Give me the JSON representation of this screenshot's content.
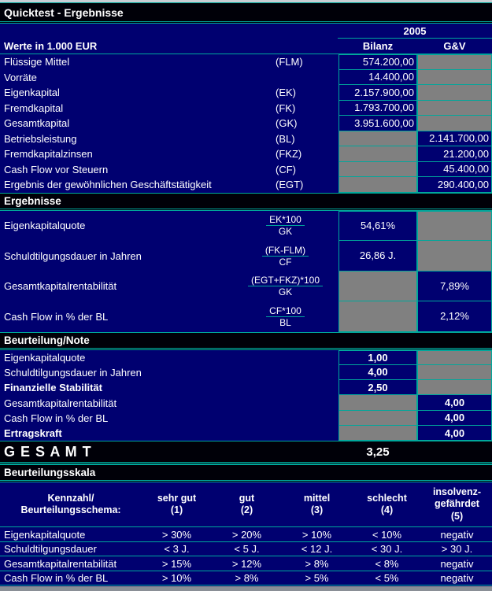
{
  "title": "Quicktest - Ergebnisse",
  "year_header": "2005",
  "unit_label": "Werte in 1.000 EUR",
  "col_bilanz": "Bilanz",
  "col_guv": "G&V",
  "input_rows": [
    {
      "label": "Flüssige Mittel",
      "code": "(FLM)",
      "value": "574.200,00",
      "column": "Bilanz"
    },
    {
      "label": "Vorräte",
      "code": "",
      "value": "14.400,00",
      "column": "Bilanz"
    },
    {
      "label": "Eigenkapital",
      "code": "(EK)",
      "value": "2.157.900,00",
      "column": "Bilanz"
    },
    {
      "label": "Fremdkapital",
      "code": "(FK)",
      "value": "1.793.700,00",
      "column": "Bilanz"
    },
    {
      "label": "Gesamtkapital",
      "code": "(GK)",
      "value": "3.951.600,00",
      "column": "Bilanz"
    },
    {
      "label": "Betriebsleistung",
      "code": "(BL)",
      "value": "2.141.700,00",
      "column": "G&V"
    },
    {
      "label": "Fremdkapitalzinsen",
      "code": "(FKZ)",
      "value": "21.200,00",
      "column": "G&V"
    },
    {
      "label": "Cash Flow vor Steuern",
      "code": "(CF)",
      "value": "45.400,00",
      "column": "G&V"
    },
    {
      "label": "Ergebnis der gewöhnlichen Geschäftstätigkeit",
      "code": "(EGT)",
      "value": "290.400,00",
      "column": "G&V"
    }
  ],
  "section_ergebnisse": "Ergebnisse",
  "ratio_rows": [
    {
      "label": "Eigenkapitalquote",
      "numerator": "EK*100",
      "denominator": "GK",
      "value": "54,61%",
      "column": "Bilanz"
    },
    {
      "label": "Schuldtilgungsdauer in Jahren",
      "numerator": "(FK-FLM)",
      "denominator": "CF",
      "value": "26,86 J.",
      "column": "Bilanz"
    },
    {
      "label": "Gesamtkapitalrentabilität",
      "numerator": "(EGT+FKZ)*100",
      "denominator": "GK",
      "value": "7,89%",
      "column": "G&V"
    },
    {
      "label": "Cash Flow in % der BL",
      "numerator": "CF*100",
      "denominator": "BL",
      "value": "2,12%",
      "column": "G&V"
    }
  ],
  "section_beurteilung": "Beurteilung/Note",
  "note_rows": [
    {
      "label": "Eigenkapitalquote",
      "value": "1,00",
      "column": "Bilanz"
    },
    {
      "label": "Schuldtilgungsdauer in Jahren",
      "value": "4,00",
      "column": "Bilanz"
    },
    {
      "label": "Finanzielle Stabilität",
      "value": "2,50",
      "column": "Bilanz"
    },
    {
      "label": "Gesamtkapitalrentabilität",
      "value": "4,00",
      "column": "G&V"
    },
    {
      "label": "Cash Flow in % der BL",
      "value": "4,00",
      "column": "G&V"
    },
    {
      "label": "Ertragskraft",
      "value": "4,00",
      "column": "G&V"
    }
  ],
  "total_label": "G E S A M T",
  "total_value": "3,25",
  "section_skala": "Beurteilungsskala",
  "scale": {
    "row_header": "Kennzahl/\nBeurteilungsschema:",
    "col_headers": [
      "sehr gut\n(1)",
      "gut\n(2)",
      "mittel\n(3)",
      "schlecht\n(4)",
      "insolvenz-\ngefährdet\n(5)"
    ],
    "rows": [
      {
        "label": "Eigenkapitalquote",
        "values": [
          "> 30%",
          "> 20%",
          "> 10%",
          "< 10%",
          "negativ"
        ]
      },
      {
        "label": "Schuldtilgungsdauer",
        "values": [
          "< 3 J.",
          "< 5 J.",
          "< 12 J.",
          "< 30 J.",
          "> 30 J."
        ]
      },
      {
        "label": "Gesamtkapitalrentabilität",
        "values": [
          "> 15%",
          "> 12%",
          "> 8%",
          "< 8%",
          "negativ"
        ]
      },
      {
        "label": "Cash Flow in % der BL",
        "values": [
          "> 10%",
          "> 8%",
          "> 5%",
          "< 5%",
          "negativ"
        ]
      }
    ]
  },
  "colors": {
    "background": "#000070",
    "section_band": "#000008",
    "grid": "#00A79B",
    "na_cell": "#808080",
    "text": "#FFFFFF"
  }
}
